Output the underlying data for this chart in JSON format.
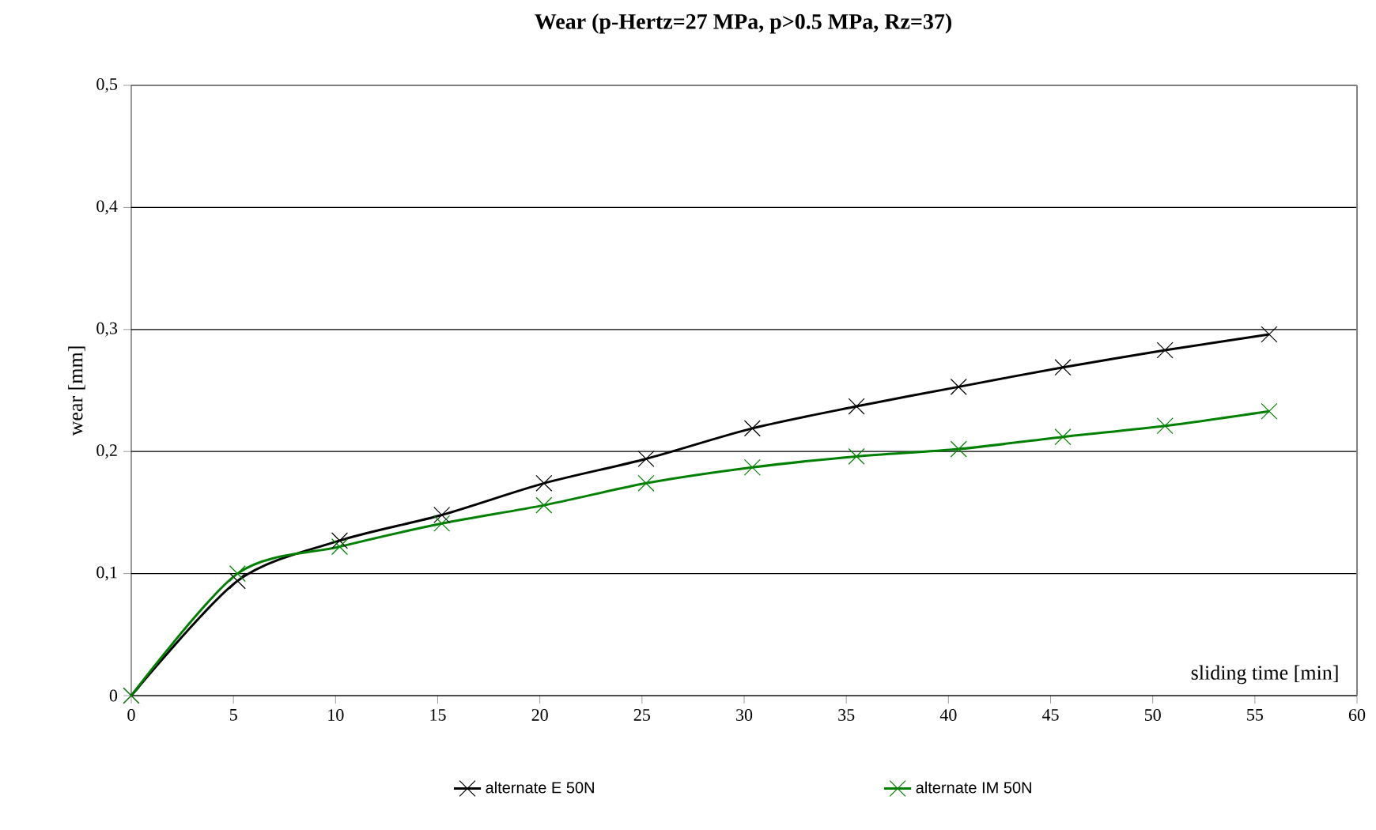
{
  "chart_data": {
    "type": "line",
    "title": "Wear (p-Hertz=27 MPa, p>0.5 MPa, Rz=37)",
    "xlabel": "sliding time [min]",
    "ylabel": "wear [mm]",
    "xlim": [
      0,
      60
    ],
    "ylim": [
      0,
      0.5
    ],
    "xticks": [
      0,
      5,
      10,
      15,
      20,
      25,
      30,
      35,
      40,
      45,
      50,
      55,
      60
    ],
    "yticks": [
      0,
      {
        "value": 0.1,
        "label": "0,1"
      },
      {
        "value": 0.2,
        "label": "0,2"
      },
      {
        "value": 0.3,
        "label": "0,3"
      },
      {
        "value": 0.4,
        "label": "0,4"
      },
      {
        "value": 0.5,
        "label": "0,5"
      }
    ],
    "grid": "y",
    "legend": "bottom",
    "marker": "cross",
    "line_style": "solid",
    "series": [
      {
        "name": "alternate E 50N",
        "color": "#000000",
        "x": [
          0,
          5.2,
          10.2,
          15.2,
          20.2,
          25.2,
          30.4,
          35.5,
          40.5,
          45.6,
          50.6,
          55.7
        ],
        "values": [
          0,
          0.094,
          0.127,
          0.148,
          0.174,
          0.194,
          0.219,
          0.237,
          0.253,
          0.269,
          0.283,
          0.296
        ]
      },
      {
        "name": "alternate IM 50N",
        "color": "#008000",
        "x": [
          0,
          5.2,
          10.2,
          15.2,
          20.2,
          25.2,
          30.4,
          35.5,
          40.5,
          45.6,
          50.6,
          55.7
        ],
        "values": [
          0,
          0.1,
          0.122,
          0.141,
          0.156,
          0.174,
          0.187,
          0.196,
          0.202,
          0.212,
          0.221,
          0.233
        ]
      }
    ]
  }
}
